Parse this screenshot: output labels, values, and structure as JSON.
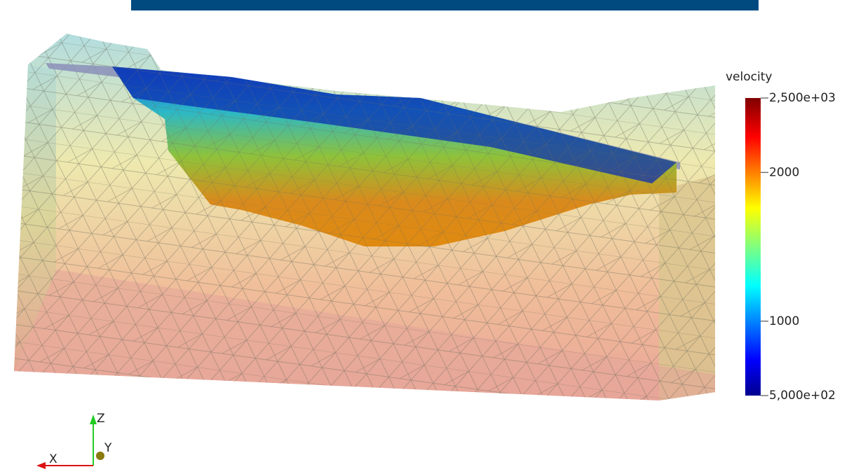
{
  "colorbar": {
    "title": "velocity",
    "range": [
      500,
      2500
    ],
    "ticks": [
      {
        "value": 2500,
        "label": "2,500e+03"
      },
      2000,
      1000,
      {
        "value": 500,
        "label": "5,000e+02"
      }
    ]
  },
  "axes": {
    "z": "Z",
    "y": "Y",
    "x": "X"
  }
}
